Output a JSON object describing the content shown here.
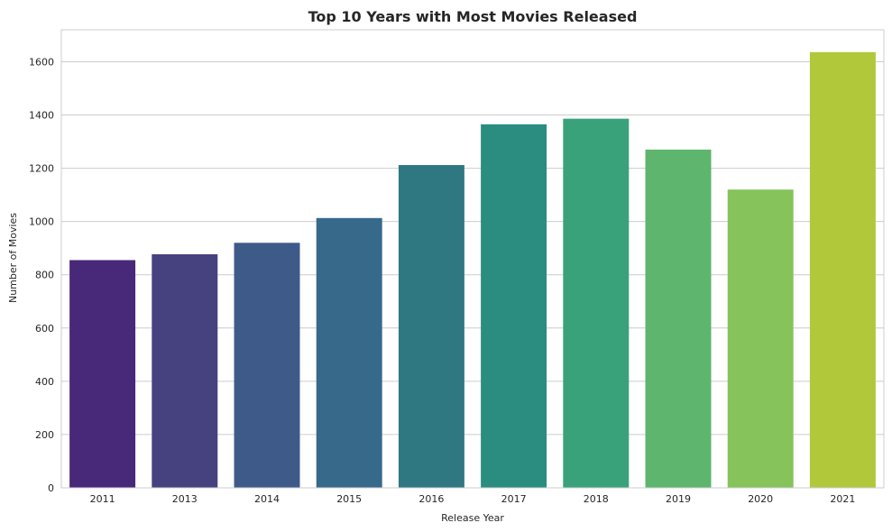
{
  "chart_data": {
    "type": "bar",
    "title": "Top 10 Years with Most Movies Released",
    "xlabel": "Release Year",
    "ylabel": "Number of Movies",
    "categories": [
      "2011",
      "2013",
      "2014",
      "2015",
      "2016",
      "2017",
      "2018",
      "2019",
      "2020",
      "2021"
    ],
    "values": [
      855,
      877,
      920,
      1013,
      1212,
      1365,
      1386,
      1270,
      1120,
      1636
    ],
    "colors": [
      "#482878",
      "#46417f",
      "#3e5a88",
      "#37698a",
      "#2f7882",
      "#2a8d80",
      "#3aa27a",
      "#5eb56d",
      "#86c35b",
      "#b2c83b"
    ],
    "ylim": [
      0,
      1720
    ],
    "yticks": [
      0,
      200,
      400,
      600,
      800,
      1000,
      1200,
      1400,
      1600
    ],
    "grid": "y",
    "legend": "none"
  }
}
